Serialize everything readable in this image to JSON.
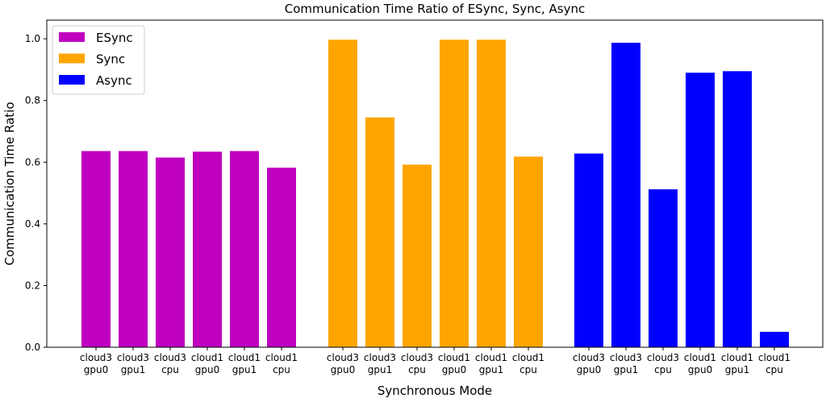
{
  "chart_data": {
    "type": "bar",
    "title": "Communication Time Ratio of ESync, Sync, Async",
    "xlabel": "Synchronous Mode",
    "ylabel": "Communication Time Ratio",
    "ylim": [
      0,
      1.0
    ],
    "yticks": [
      "0.0",
      "0.2",
      "0.4",
      "0.6",
      "0.8",
      "1.0"
    ],
    "categories": [
      [
        "cloud3",
        "gpu0"
      ],
      [
        "cloud3",
        "gpu1"
      ],
      [
        "cloud3",
        "cpu"
      ],
      [
        "cloud1",
        "gpu0"
      ],
      [
        "cloud1",
        "gpu1"
      ],
      [
        "cloud1",
        "cpu"
      ]
    ],
    "legend_position": "top-left",
    "grid": false,
    "series": [
      {
        "name": "ESync",
        "color": "#bf00bf",
        "values": [
          0.636,
          0.636,
          0.615,
          0.634,
          0.636,
          0.582
        ]
      },
      {
        "name": "Sync",
        "color": "#ffa500",
        "values": [
          0.997,
          0.745,
          0.592,
          0.997,
          0.997,
          0.618
        ]
      },
      {
        "name": "Async",
        "color": "#0000ff",
        "values": [
          0.628,
          0.987,
          0.512,
          0.89,
          0.895,
          0.05
        ]
      }
    ]
  }
}
